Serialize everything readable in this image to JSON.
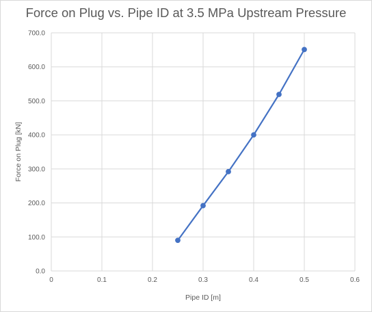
{
  "chart_data": {
    "type": "scatter",
    "title": "Force on Plug vs. Pipe ID at 3.5 MPa Upstream Pressure",
    "xlabel": "Pipe ID [m]",
    "ylabel": "Force on Plug [kN]",
    "xlim": [
      0,
      0.6
    ],
    "ylim": [
      0,
      700
    ],
    "x_ticks": [
      "0",
      "0.1",
      "0.2",
      "0.3",
      "0.4",
      "0.5",
      "0.6"
    ],
    "y_ticks": [
      "0.0",
      "100.0",
      "200.0",
      "300.0",
      "400.0",
      "500.0",
      "600.0",
      "700.0"
    ],
    "grid": true,
    "legend": "none",
    "series": [
      {
        "color": "#4472c4",
        "x": [
          0.25,
          0.3,
          0.35,
          0.4,
          0.45,
          0.5
        ],
        "y": [
          90,
          192,
          292,
          400,
          519,
          651
        ]
      }
    ]
  }
}
